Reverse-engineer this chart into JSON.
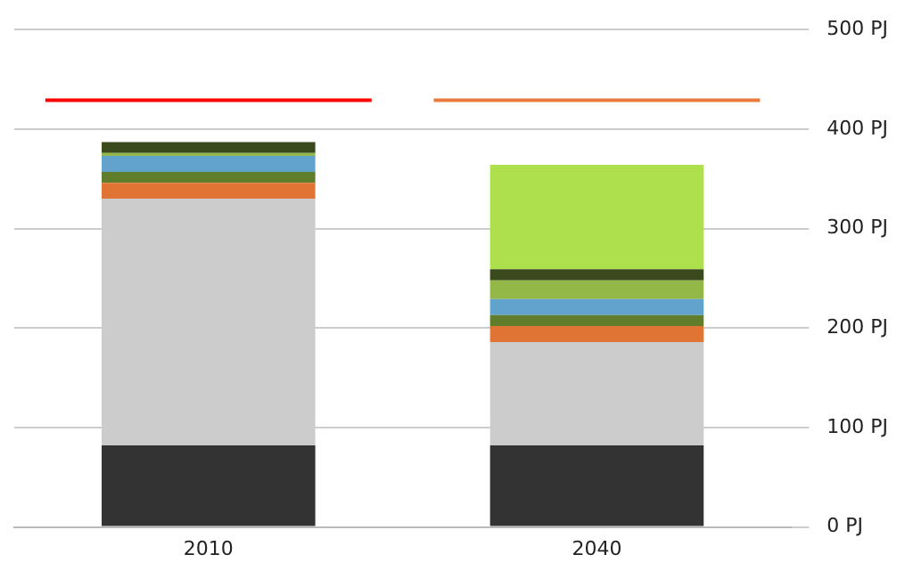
{
  "chart_data": {
    "type": "bar",
    "stacked": true,
    "categories": [
      "2010",
      "2040"
    ],
    "series": [
      {
        "color": "#333333",
        "values": [
          82,
          82
        ]
      },
      {
        "color": "#cccccc",
        "values": [
          248,
          104
        ]
      },
      {
        "color": "#e07434",
        "values": [
          16,
          16
        ]
      },
      {
        "color": "#5f7d2a",
        "values": [
          11,
          11
        ]
      },
      {
        "color": "#62a3cd",
        "values": [
          16,
          16
        ]
      },
      {
        "color": "#93b848",
        "values": [
          3,
          19
        ]
      },
      {
        "color": "#3a4a1c",
        "values": [
          11,
          11
        ]
      },
      {
        "color": "#aee04e",
        "values": [
          0,
          105
        ]
      }
    ],
    "ref_lines": [
      {
        "axis": "y",
        "value": 429,
        "color": "#ff0000"
      },
      {
        "axis": "y",
        "value": 429,
        "color": "#e87b3c"
      }
    ],
    "ylim": [
      0,
      500
    ],
    "yticks": [
      {
        "value": 0,
        "label": "0 PJ"
      },
      {
        "value": 100,
        "label": "100 PJ"
      },
      {
        "value": 200,
        "label": "200 PJ"
      },
      {
        "value": 300,
        "label": "300 PJ"
      },
      {
        "value": 400,
        "label": "400 PJ"
      },
      {
        "value": 500,
        "label": "500 PJ"
      }
    ],
    "grid": "y",
    "legend": false
  }
}
